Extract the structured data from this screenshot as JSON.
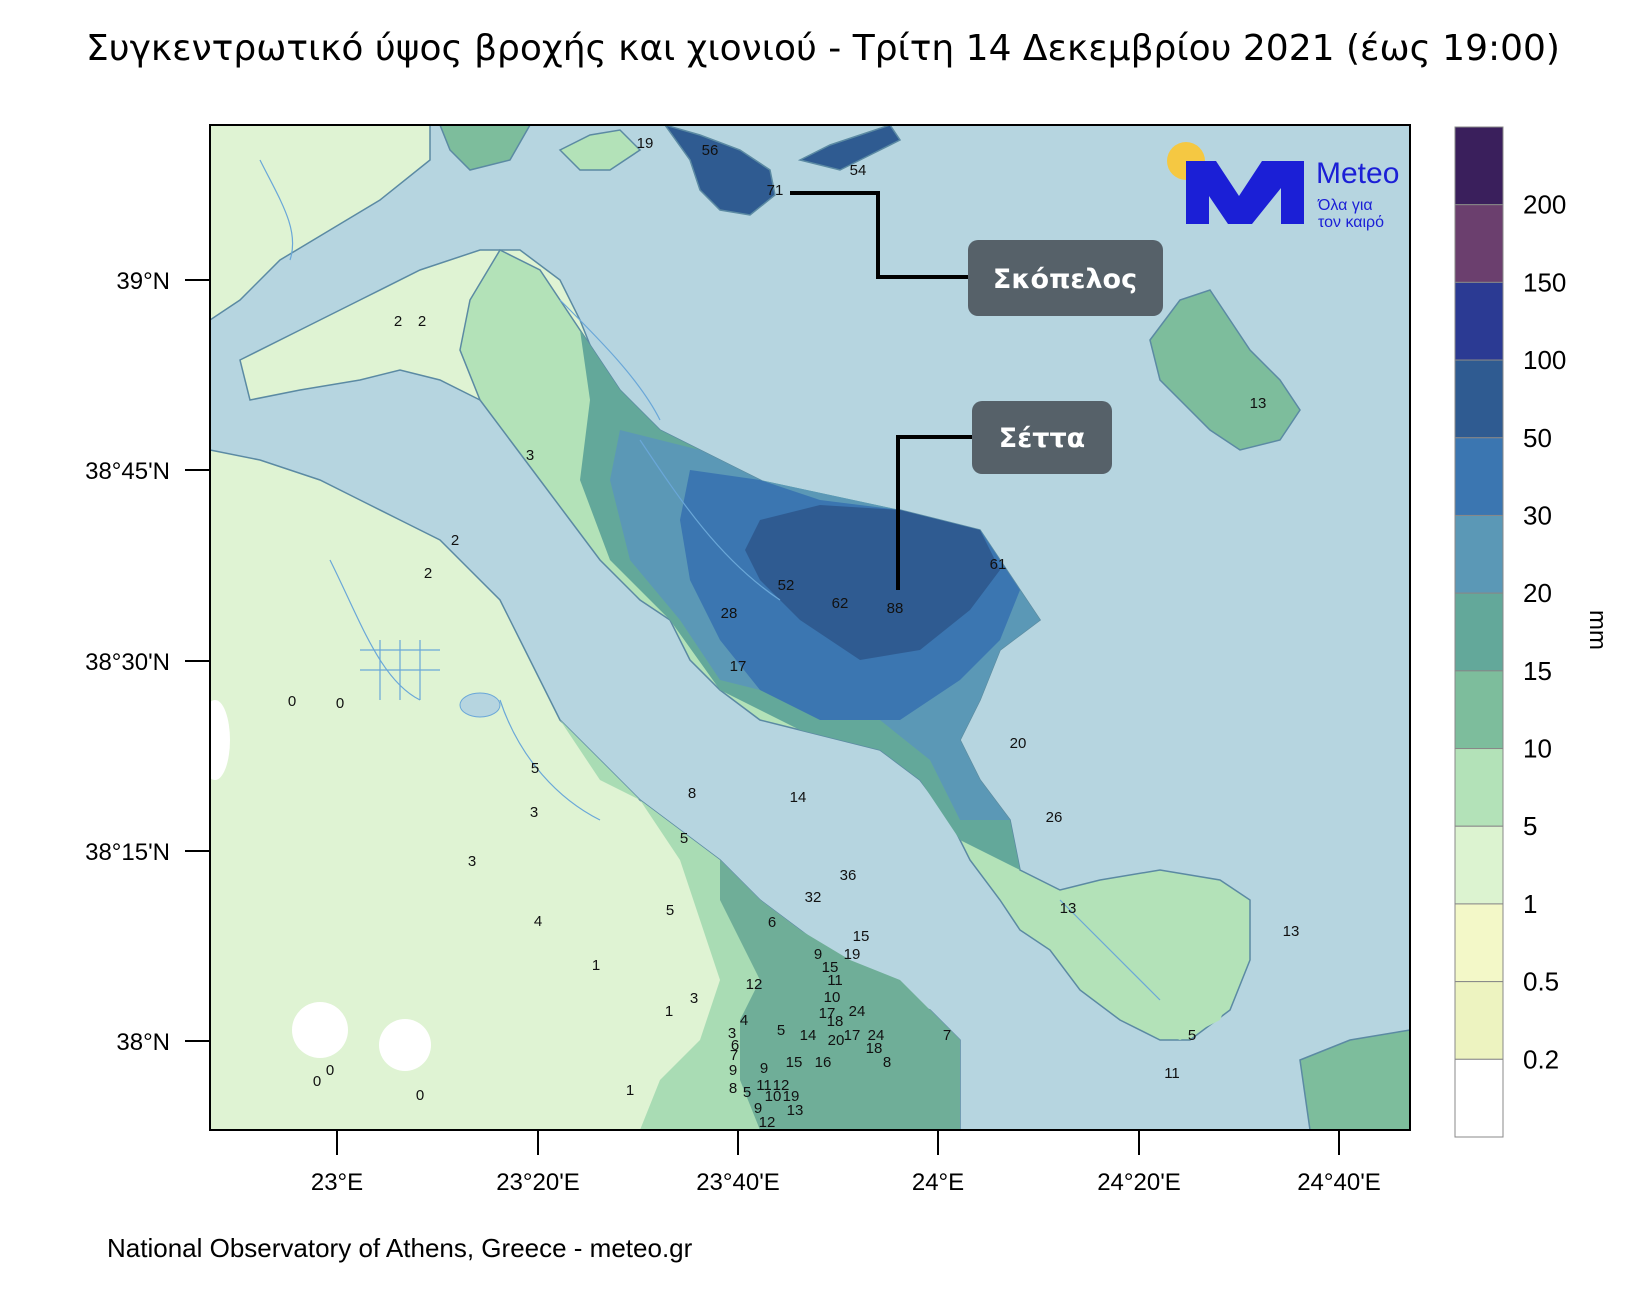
{
  "title": "Συγκεντρωτικό ύψος βροχής και χιονιού - Τρίτη 14 Δεκεμβρίου 2021 (έως 19:00)",
  "footer": "National Observatory of Athens, Greece - meteo.gr",
  "logo": {
    "brand": "Meteo",
    "tagline_1": "Όλα για",
    "tagline_2": "τον καιρό",
    "color": "#1b1fd6",
    "sun_color": "#f5c842"
  },
  "axes": {
    "lat_ticks": [
      "39°N",
      "38°45'N",
      "38°30'N",
      "38°15'N",
      "38°N"
    ],
    "lon_ticks": [
      "23°E",
      "23°20'E",
      "23°40'E",
      "24°E",
      "24°20'E",
      "24°40'E"
    ]
  },
  "callouts": [
    {
      "label": "Σκόπελος"
    },
    {
      "label": "Σέττα"
    }
  ],
  "colorbar": {
    "unit": "mm",
    "levels": [
      "200",
      "150",
      "100",
      "50",
      "30",
      "20",
      "15",
      "10",
      "5",
      "1",
      "0.5",
      "0.2"
    ],
    "colors": [
      "#3a1f5c",
      "#6b3f6e",
      "#2b3a93",
      "#2f5b91",
      "#3b76b1",
      "#5b98b6",
      "#63a89a",
      "#7dbd9c",
      "#b3e2b8",
      "#dcf3d0",
      "#f3f8c8",
      "#edf3c0",
      "#ffffff"
    ]
  },
  "colors": {
    "sea": "#b6d5e0",
    "coast": "#5b8aa3",
    "river": "#6aa7d8"
  },
  "values": [
    "19",
    "56",
    "54",
    "71",
    "2",
    "2",
    "3",
    "2",
    "2",
    "52",
    "62",
    "88",
    "61",
    "28",
    "17",
    "20",
    "13",
    "0",
    "0",
    "5",
    "3",
    "3",
    "8",
    "5",
    "14",
    "36",
    "32",
    "26",
    "4",
    "5",
    "6",
    "13",
    "13",
    "1",
    "3",
    "12",
    "15",
    "9",
    "19",
    "15",
    "11",
    "10",
    "17",
    "24",
    "18",
    "20",
    "17",
    "24",
    "18",
    "8",
    "14",
    "4",
    "5",
    "3",
    "6",
    "7",
    "9",
    "11",
    "12",
    "10",
    "19",
    "13",
    "8",
    "9",
    "12",
    "5",
    "15",
    "16",
    "5",
    "7",
    "9",
    "0",
    "0",
    "0",
    "1",
    "1",
    "11"
  ]
}
